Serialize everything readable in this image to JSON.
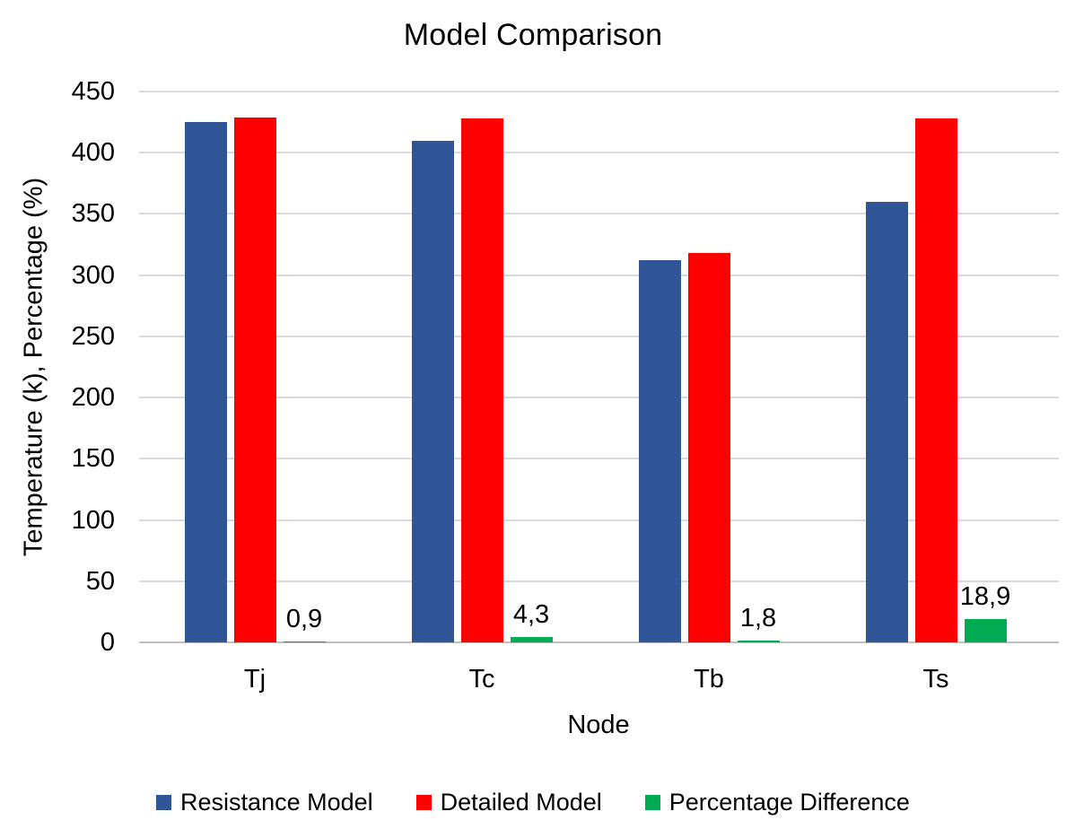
{
  "title": "Model Comparison",
  "chart_data": {
    "type": "bar",
    "title": "Model Comparison",
    "xlabel": "Node",
    "ylabel": "Temperature (k), Percentage (%)",
    "categories": [
      "Tj",
      "Tc",
      "Tb",
      "Ts"
    ],
    "series": [
      {
        "name": "Resistance Model",
        "color": "#2F5597",
        "values": [
          425,
          410,
          312,
          360
        ]
      },
      {
        "name": "Detailed Model",
        "color": "#FF0000",
        "values": [
          429,
          428,
          318,
          428
        ]
      },
      {
        "name": "Percentage Difference",
        "color": "#00AC53",
        "values": [
          0.9,
          4.3,
          1.8,
          18.9
        ],
        "data_labels": [
          "0,9",
          "4,3",
          "1,8",
          "18,9"
        ]
      }
    ],
    "ylim": [
      0,
      450
    ],
    "ytick_step": 50,
    "ytick_labels": [
      "450",
      "400",
      "350",
      "300",
      "250",
      "200",
      "150",
      "100",
      "50",
      "0"
    ],
    "grid": true,
    "gridline_color": "#D9D9D9",
    "axis_line_color": "#BFBFBF",
    "legend_position": "bottom",
    "legend_entries": [
      "Resistance Model",
      "Detailed Model",
      "Percentage Difference"
    ]
  }
}
